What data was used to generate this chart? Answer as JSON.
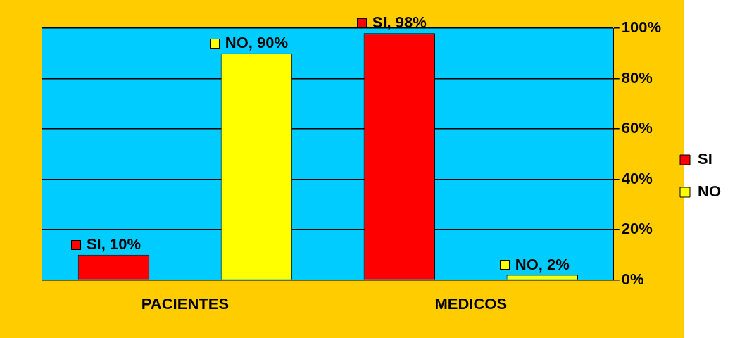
{
  "chart_data": {
    "type": "bar",
    "categories": [
      "PACIENTES",
      "MEDICOS"
    ],
    "series": [
      {
        "name": "SI",
        "color": "#ff0000",
        "values": [
          10,
          98
        ],
        "value_labels": [
          "SI, 10%",
          "SI, 98%"
        ]
      },
      {
        "name": "NO",
        "color": "#ffff00",
        "values": [
          90,
          2
        ],
        "value_labels": [
          "NO, 90%",
          "NO, 2%"
        ]
      }
    ],
    "ylim": [
      0,
      100
    ],
    "yticks": [
      {
        "value": 0,
        "label": "0%"
      },
      {
        "value": 20,
        "label": "20%"
      },
      {
        "value": 40,
        "label": "40%"
      },
      {
        "value": 60,
        "label": "60%"
      },
      {
        "value": 80,
        "label": "80%"
      },
      {
        "value": 100,
        "label": "100%"
      }
    ],
    "grid": "y",
    "legend": "right"
  }
}
